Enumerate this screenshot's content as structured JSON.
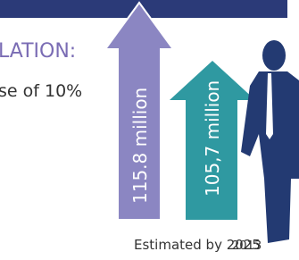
{
  "header": {
    "title": "LATION:",
    "subtitle": "se of 10%"
  },
  "arrows": [
    {
      "label": "115.8 million",
      "caption": "Estimated by 2025"
    },
    {
      "label": "105,7 million",
      "caption": "2013"
    }
  ]
}
